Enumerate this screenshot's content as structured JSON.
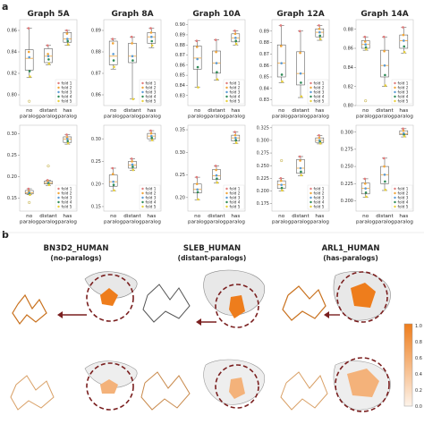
{
  "section_labels": [
    "a",
    "b"
  ],
  "colors": {
    "fold1": "#e07b7b",
    "fold2": "#f0a53a",
    "fold3": "#5b9bd5",
    "fold4": "#2e8b57",
    "fold5": "#e8cf3a",
    "box": "#444444",
    "median": "#f0a53a"
  },
  "chart_data": {
    "type": "box",
    "categories": [
      "no\nparalog",
      "distant\nparalog",
      "has\nparalog"
    ],
    "category_lines": [
      [
        "no",
        "paralog"
      ],
      [
        "distant",
        "paralog"
      ],
      [
        "has",
        "paralog"
      ]
    ],
    "legend": [
      "fold 1",
      "fold 2",
      "fold 3",
      "fold 4",
      "fold 5"
    ],
    "panels": [
      {
        "title": "Graph 5A",
        "top": {
          "ylim": [
            0.79,
            0.87
          ],
          "yticks": [
            0.8,
            0.82,
            0.84,
            0.86
          ],
          "yticklabels": [
            "0.80",
            "0.82",
            "0.84",
            "0.86"
          ],
          "boxes": [
            {
              "q1": 0.823,
              "median": 0.834,
              "q3": 0.842,
              "whislo": 0.816,
              "whishi": 0.862,
              "points": [
                0.862,
                0.84,
                0.835,
                0.822,
                0.817
              ]
            },
            {
              "q1": 0.83,
              "median": 0.836,
              "q3": 0.843,
              "whislo": 0.828,
              "whishi": 0.846,
              "points": [
                0.846,
                0.838,
                0.836,
                0.833,
                0.829
              ]
            },
            {
              "q1": 0.849,
              "median": 0.852,
              "q3": 0.858,
              "whislo": 0.846,
              "whishi": 0.86,
              "points": [
                0.86,
                0.857,
                0.852,
                0.85,
                0.847
              ]
            }
          ],
          "outliers": [
            {
              "cat": 0,
              "value": 0.794
            }
          ]
        },
        "bottom": {
          "ylim": [
            0.12,
            0.32
          ],
          "yticks": [
            0.15,
            0.2,
            0.25,
            0.3
          ],
          "yticklabels": [
            "0.15",
            "0.20",
            "0.25",
            "0.30"
          ],
          "boxes": [
            {
              "q1": 0.16,
              "median": 0.163,
              "q3": 0.168,
              "whislo": 0.158,
              "whishi": 0.172,
              "points": [
                0.172,
                0.166,
                0.163,
                0.16,
                0.158
              ]
            },
            {
              "q1": 0.183,
              "median": 0.186,
              "q3": 0.19,
              "whislo": 0.18,
              "whishi": 0.192,
              "points": [
                0.192,
                0.189,
                0.186,
                0.184,
                0.181
              ]
            },
            {
              "q1": 0.28,
              "median": 0.288,
              "q3": 0.293,
              "whislo": 0.276,
              "whishi": 0.298,
              "points": [
                0.298,
                0.292,
                0.288,
                0.283,
                0.278
              ]
            }
          ],
          "outliers": [
            {
              "cat": 0,
              "value": 0.14
            },
            {
              "cat": 1,
              "value": 0.225
            }
          ]
        }
      },
      {
        "title": "Graph 8A",
        "top": {
          "ylim": [
            0.855,
            0.895
          ],
          "yticks": [
            0.86,
            0.87,
            0.88,
            0.89
          ],
          "yticklabels": [
            "0.86",
            "0.87",
            "0.88",
            "0.89"
          ],
          "boxes": [
            {
              "q1": 0.874,
              "median": 0.878,
              "q3": 0.885,
              "whislo": 0.872,
              "whishi": 0.886,
              "points": [
                0.886,
                0.884,
                0.879,
                0.876,
                0.873
              ]
            },
            {
              "q1": 0.875,
              "median": 0.878,
              "q3": 0.884,
              "whislo": 0.858,
              "whishi": 0.887,
              "points": [
                0.887,
                0.884,
                0.878,
                0.876,
                0.858
              ]
            },
            {
              "q1": 0.884,
              "median": 0.887,
              "q3": 0.889,
              "whislo": 0.882,
              "whishi": 0.891,
              "points": [
                0.891,
                0.889,
                0.887,
                0.885,
                0.883
              ]
            }
          ],
          "outliers": []
        },
        "bottom": {
          "ylim": [
            0.14,
            0.33
          ],
          "yticks": [
            0.15,
            0.2,
            0.25,
            0.3
          ],
          "yticklabels": [
            "0.15",
            "0.20",
            "0.25",
            "0.30"
          ],
          "boxes": [
            {
              "q1": 0.195,
              "median": 0.205,
              "q3": 0.22,
              "whislo": 0.185,
              "whishi": 0.235,
              "points": [
                0.235,
                0.222,
                0.205,
                0.198,
                0.186
              ]
            },
            {
              "q1": 0.235,
              "median": 0.242,
              "q3": 0.25,
              "whislo": 0.23,
              "whishi": 0.256,
              "points": [
                0.256,
                0.25,
                0.243,
                0.238,
                0.231
              ]
            },
            {
              "q1": 0.3,
              "median": 0.306,
              "q3": 0.312,
              "whislo": 0.296,
              "whishi": 0.318,
              "points": [
                0.318,
                0.312,
                0.306,
                0.302,
                0.297
              ]
            }
          ],
          "outliers": []
        }
      },
      {
        "title": "Graph 10A",
        "top": {
          "ylim": [
            0.82,
            0.905
          ],
          "yticks": [
            0.83,
            0.84,
            0.85,
            0.86,
            0.87,
            0.88,
            0.89,
            0.9
          ],
          "yticklabels": [
            "0.83",
            "0.84",
            "0.85",
            "0.86",
            "0.87",
            "0.88",
            "0.89",
            "0.90"
          ],
          "boxes": [
            {
              "q1": 0.856,
              "median": 0.867,
              "q3": 0.879,
              "whislo": 0.838,
              "whishi": 0.884,
              "points": [
                0.884,
                0.878,
                0.866,
                0.858,
                0.838
              ]
            },
            {
              "q1": 0.852,
              "median": 0.862,
              "q3": 0.874,
              "whislo": 0.845,
              "whishi": 0.885,
              "points": [
                0.885,
                0.873,
                0.862,
                0.853,
                0.846
              ]
            },
            {
              "q1": 0.883,
              "median": 0.887,
              "q3": 0.891,
              "whislo": 0.88,
              "whishi": 0.894,
              "points": [
                0.894,
                0.891,
                0.887,
                0.884,
                0.881
              ]
            }
          ],
          "outliers": []
        },
        "bottom": {
          "ylim": [
            0.17,
            0.36
          ],
          "yticks": [
            0.2,
            0.25,
            0.3,
            0.35
          ],
          "yticklabels": [
            "0.20",
            "0.25",
            "0.30",
            "0.35"
          ],
          "boxes": [
            {
              "q1": 0.21,
              "median": 0.218,
              "q3": 0.23,
              "whislo": 0.195,
              "whishi": 0.245,
              "points": [
                0.245,
                0.23,
                0.218,
                0.212,
                0.196
              ]
            },
            {
              "q1": 0.24,
              "median": 0.248,
              "q3": 0.262,
              "whislo": 0.232,
              "whishi": 0.27,
              "points": [
                0.27,
                0.261,
                0.249,
                0.242,
                0.233
              ]
            },
            {
              "q1": 0.325,
              "median": 0.332,
              "q3": 0.338,
              "whislo": 0.32,
              "whishi": 0.345,
              "points": [
                0.345,
                0.338,
                0.332,
                0.327,
                0.321
              ]
            }
          ],
          "outliers": []
        }
      },
      {
        "title": "Graph 12A",
        "top": {
          "ylim": [
            0.825,
            0.9
          ],
          "yticks": [
            0.83,
            0.84,
            0.85,
            0.86,
            0.87,
            0.88,
            0.89
          ],
          "yticklabels": [
            "0.83",
            "0.84",
            "0.85",
            "0.86",
            "0.87",
            "0.88",
            "0.89"
          ],
          "boxes": [
            {
              "q1": 0.85,
              "median": 0.862,
              "q3": 0.878,
              "whislo": 0.845,
              "whishi": 0.895,
              "points": [
                0.895,
                0.877,
                0.862,
                0.852,
                0.846
              ]
            },
            {
              "q1": 0.843,
              "median": 0.853,
              "q3": 0.872,
              "whislo": 0.832,
              "whishi": 0.89,
              "points": [
                0.89,
                0.871,
                0.853,
                0.845,
                0.833
              ]
            },
            {
              "q1": 0.885,
              "median": 0.889,
              "q3": 0.892,
              "whislo": 0.882,
              "whishi": 0.895,
              "points": [
                0.895,
                0.892,
                0.889,
                0.886,
                0.883
              ]
            }
          ],
          "outliers": []
        },
        "bottom": {
          "ylim": [
            0.16,
            0.33
          ],
          "yticks": [
            0.175,
            0.2,
            0.225,
            0.25,
            0.275,
            0.3,
            0.325
          ],
          "yticklabels": [
            "0.175",
            "0.200",
            "0.225",
            "0.250",
            "0.275",
            "0.300",
            "0.325"
          ],
          "boxes": [
            {
              "q1": 0.205,
              "median": 0.212,
              "q3": 0.22,
              "whislo": 0.2,
              "whishi": 0.225,
              "points": [
                0.225,
                0.22,
                0.212,
                0.206,
                0.201
              ]
            },
            {
              "q1": 0.235,
              "median": 0.245,
              "q3": 0.262,
              "whislo": 0.23,
              "whishi": 0.268,
              "points": [
                0.268,
                0.26,
                0.245,
                0.238,
                0.231
              ]
            },
            {
              "q1": 0.296,
              "median": 0.3,
              "q3": 0.305,
              "whislo": 0.293,
              "whishi": 0.31,
              "points": [
                0.31,
                0.305,
                0.3,
                0.297,
                0.294
              ]
            }
          ],
          "outliers": [
            {
              "cat": 0,
              "value": 0.26
            }
          ]
        }
      },
      {
        "title": "Graph 14A",
        "top": {
          "ylim": [
            0.8,
            0.89
          ],
          "yticks": [
            0.8,
            0.82,
            0.84,
            0.86,
            0.88
          ],
          "yticklabels": [
            "0.80",
            "0.82",
            "0.84",
            "0.86",
            "0.88"
          ],
          "boxes": [
            {
              "q1": 0.86,
              "median": 0.864,
              "q3": 0.868,
              "whislo": 0.858,
              "whishi": 0.872,
              "points": [
                0.872,
                0.867,
                0.864,
                0.861,
                0.859
              ]
            },
            {
              "q1": 0.83,
              "median": 0.842,
              "q3": 0.858,
              "whislo": 0.82,
              "whishi": 0.872,
              "points": [
                0.872,
                0.857,
                0.842,
                0.832,
                0.821
              ]
            },
            {
              "q1": 0.86,
              "median": 0.868,
              "q3": 0.874,
              "whislo": 0.855,
              "whishi": 0.882,
              "points": [
                0.882,
                0.874,
                0.868,
                0.862,
                0.856
              ]
            }
          ],
          "outliers": [
            {
              "cat": 0,
              "value": 0.805
            }
          ]
        },
        "bottom": {
          "ylim": [
            0.185,
            0.31
          ],
          "yticks": [
            0.2,
            0.225,
            0.25,
            0.275,
            0.3
          ],
          "yticklabels": [
            "0.200",
            "0.225",
            "0.250",
            "0.275",
            "0.300"
          ],
          "boxes": [
            {
              "q1": 0.21,
              "median": 0.218,
              "q3": 0.226,
              "whislo": 0.205,
              "whishi": 0.232,
              "points": [
                0.232,
                0.225,
                0.218,
                0.212,
                0.206
              ]
            },
            {
              "q1": 0.225,
              "median": 0.238,
              "q3": 0.25,
              "whislo": 0.215,
              "whishi": 0.262,
              "points": [
                0.262,
                0.25,
                0.238,
                0.228,
                0.216
              ]
            },
            {
              "q1": 0.296,
              "median": 0.298,
              "q3": 0.302,
              "whislo": 0.293,
              "whishi": 0.305,
              "points": [
                0.305,
                0.302,
                0.298,
                0.296,
                0.294
              ]
            }
          ],
          "outliers": []
        }
      }
    ]
  },
  "structures": [
    {
      "name": "BN3D2_HUMAN",
      "group": "(no-paralogs)"
    },
    {
      "name": "SLEB_HUMAN",
      "group": "(distant-paralogs)"
    },
    {
      "name": "ARL1_HUMAN",
      "group": "(has-paralogs)"
    }
  ],
  "colorbar": {
    "ticks": [
      "1.0",
      "0.8",
      "0.6",
      "0.4",
      "0.2",
      "0.0"
    ],
    "range": [
      0,
      1
    ],
    "color_high": "#ee7d1c",
    "color_low": "#fdf3ea"
  }
}
